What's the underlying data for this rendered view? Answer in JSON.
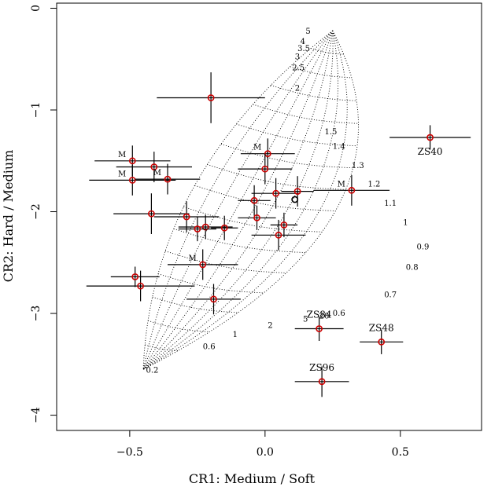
{
  "chart_data": {
    "type": "scatter",
    "xlabel": "CR1: Medium / Soft",
    "ylabel": "CR2: Hard / Medium",
    "xlim": [
      -0.77,
      0.8
    ],
    "ylim": [
      -4.15,
      0.05
    ],
    "x_ticks": [
      {
        "value": -0.5,
        "label": "−0.5"
      },
      {
        "value": 0.0,
        "label": "0.0"
      },
      {
        "value": 0.5,
        "label": "0.5"
      }
    ],
    "y_ticks": [
      {
        "value": 0,
        "label": "0"
      },
      {
        "value": -1,
        "label": "−1"
      },
      {
        "value": -2,
        "label": "−2"
      },
      {
        "value": -3,
        "label": "−3"
      },
      {
        "value": -4,
        "label": "−4"
      }
    ],
    "grid": false,
    "points": [
      {
        "x": -0.2,
        "y": -0.88,
        "xerr": 0.2,
        "yerr": 0.25,
        "label": ""
      },
      {
        "x": 0.61,
        "y": -1.27,
        "xerr": 0.15,
        "yerr": 0.12,
        "label": "ZS40"
      },
      {
        "x": -0.49,
        "y": -1.5,
        "xerr": 0.14,
        "yerr": 0.15,
        "label": "M"
      },
      {
        "x": -0.41,
        "y": -1.56,
        "xerr": 0.14,
        "yerr": 0.15,
        "label": ""
      },
      {
        "x": -0.49,
        "y": -1.69,
        "xerr": 0.16,
        "yerr": 0.15,
        "label": "M"
      },
      {
        "x": -0.36,
        "y": -1.68,
        "xerr": 0.12,
        "yerr": 0.15,
        "label": "M"
      },
      {
        "x": 0.01,
        "y": -1.43,
        "xerr": 0.1,
        "yerr": 0.15,
        "label": "M"
      },
      {
        "x": 0.0,
        "y": -1.58,
        "xerr": 0.1,
        "yerr": 0.15,
        "label": ""
      },
      {
        "x": 0.04,
        "y": -1.82,
        "xerr": 0.09,
        "yerr": 0.15,
        "label": ""
      },
      {
        "x": 0.12,
        "y": -1.8,
        "xerr": 0.06,
        "yerr": 0.15,
        "label": ""
      },
      {
        "x": 0.32,
        "y": -1.79,
        "xerr": 0.14,
        "yerr": 0.15,
        "label": "M"
      },
      {
        "x": -0.04,
        "y": -1.89,
        "xerr": 0.06,
        "yerr": 0.15,
        "label": ""
      },
      {
        "x": -0.03,
        "y": -2.06,
        "xerr": 0.07,
        "yerr": 0.12,
        "label": ""
      },
      {
        "x": 0.07,
        "y": -2.13,
        "xerr": 0.05,
        "yerr": 0.12,
        "label": ""
      },
      {
        "x": 0.05,
        "y": -2.23,
        "xerr": 0.1,
        "yerr": 0.15,
        "label": ""
      },
      {
        "x": -0.42,
        "y": -2.02,
        "xerr": 0.14,
        "yerr": 0.2,
        "label": ""
      },
      {
        "x": -0.29,
        "y": -2.05,
        "xerr": 0.12,
        "yerr": 0.15,
        "label": ""
      },
      {
        "x": -0.22,
        "y": -2.15,
        "xerr": 0.1,
        "yerr": 0.12,
        "label": ""
      },
      {
        "x": -0.25,
        "y": -2.17,
        "xerr": 0.07,
        "yerr": 0.12,
        "label": ""
      },
      {
        "x": -0.15,
        "y": -2.16,
        "xerr": 0.05,
        "yerr": 0.12,
        "label": ""
      },
      {
        "x": -0.23,
        "y": -2.52,
        "xerr": 0.13,
        "yerr": 0.15,
        "label": "M"
      },
      {
        "x": -0.48,
        "y": -2.64,
        "xerr": 0.09,
        "yerr": 0.1,
        "label": ""
      },
      {
        "x": -0.46,
        "y": -2.73,
        "xerr": 0.2,
        "yerr": 0.15,
        "label": ""
      },
      {
        "x": -0.19,
        "y": -2.86,
        "xerr": 0.1,
        "yerr": 0.15,
        "label": ""
      },
      {
        "x": 0.2,
        "y": -3.15,
        "xerr": 0.09,
        "yerr": 0.12,
        "label": "ZS84"
      },
      {
        "x": 0.43,
        "y": -3.28,
        "xerr": 0.08,
        "yerr": 0.12,
        "label": "ZS48"
      },
      {
        "x": 0.21,
        "y": -3.67,
        "xerr": 0.1,
        "yerr": 0.15,
        "label": "ZS96"
      },
      {
        "x": 0.11,
        "y": -1.88,
        "xerr": 0,
        "yerr": 0,
        "label": "",
        "color": "#000000"
      }
    ],
    "grid_labels": [
      {
        "x": 0.15,
        "y": -0.22,
        "text": "5"
      },
      {
        "x": 0.13,
        "y": -0.32,
        "text": "4"
      },
      {
        "x": 0.12,
        "y": -0.39,
        "text": "3.5"
      },
      {
        "x": 0.11,
        "y": -0.47,
        "text": "3"
      },
      {
        "x": 0.1,
        "y": -0.58,
        "text": "2.5"
      },
      {
        "x": 0.11,
        "y": -0.78,
        "text": "2"
      },
      {
        "x": 0.22,
        "y": -1.21,
        "text": "1.5"
      },
      {
        "x": 0.25,
        "y": -1.35,
        "text": "1.4"
      },
      {
        "x": 0.32,
        "y": -1.54,
        "text": "1.3"
      },
      {
        "x": 0.38,
        "y": -1.72,
        "text": "1.2"
      },
      {
        "x": 0.44,
        "y": -1.91,
        "text": "1.1"
      },
      {
        "x": 0.51,
        "y": -2.1,
        "text": "1"
      },
      {
        "x": 0.56,
        "y": -2.34,
        "text": "0.9"
      },
      {
        "x": 0.52,
        "y": -2.54,
        "text": "0.8"
      },
      {
        "x": 0.44,
        "y": -2.81,
        "text": "0.7"
      },
      {
        "x": 0.25,
        "y": -2.99,
        "text": "0.6"
      },
      {
        "x": 0.2,
        "y": -3.02,
        "text": "20"
      },
      {
        "x": 0.14,
        "y": -3.05,
        "text": "5"
      },
      {
        "x": 0.01,
        "y": -3.11,
        "text": "2"
      },
      {
        "x": -0.12,
        "y": -3.2,
        "text": "1"
      },
      {
        "x": -0.23,
        "y": -3.32,
        "text": "0.6"
      },
      {
        "x": -0.44,
        "y": -3.55,
        "text": "0.2"
      }
    ],
    "point_color": "#cc0000"
  }
}
